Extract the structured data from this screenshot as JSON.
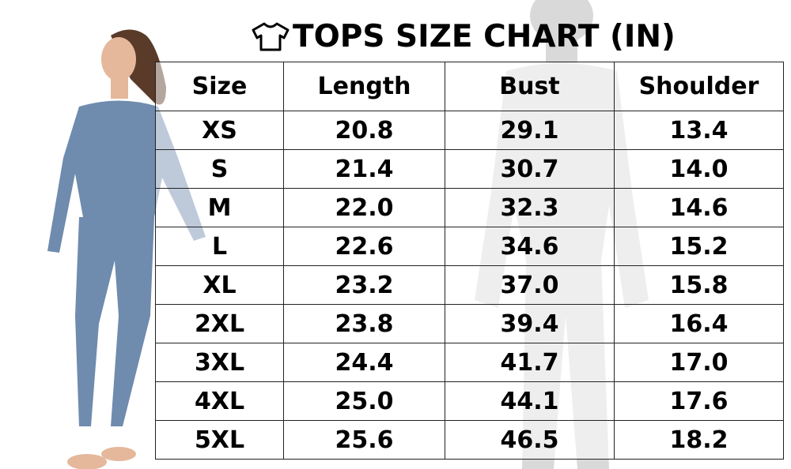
{
  "title": "TOPS SIZE CHART (IN)",
  "title_icon": "t-shirt-icon",
  "colors": {
    "garment": "#6f8bae",
    "text": "#000000",
    "border": "#222222"
  },
  "table": {
    "headers": [
      "Size",
      "Length",
      "Bust",
      "Shoulder"
    ],
    "rows": [
      [
        "XS",
        "20.8",
        "29.1",
        "13.4"
      ],
      [
        "S",
        "21.4",
        "30.7",
        "14.0"
      ],
      [
        "M",
        "22.0",
        "32.3",
        "14.6"
      ],
      [
        "L",
        "22.6",
        "34.6",
        "15.2"
      ],
      [
        "XL",
        "23.2",
        "37.0",
        "15.8"
      ],
      [
        "2XL",
        "23.8",
        "39.4",
        "16.4"
      ],
      [
        "3XL",
        "24.4",
        "41.7",
        "17.0"
      ],
      [
        "4XL",
        "25.0",
        "44.1",
        "17.6"
      ],
      [
        "5XL",
        "25.6",
        "46.5",
        "18.2"
      ]
    ]
  }
}
